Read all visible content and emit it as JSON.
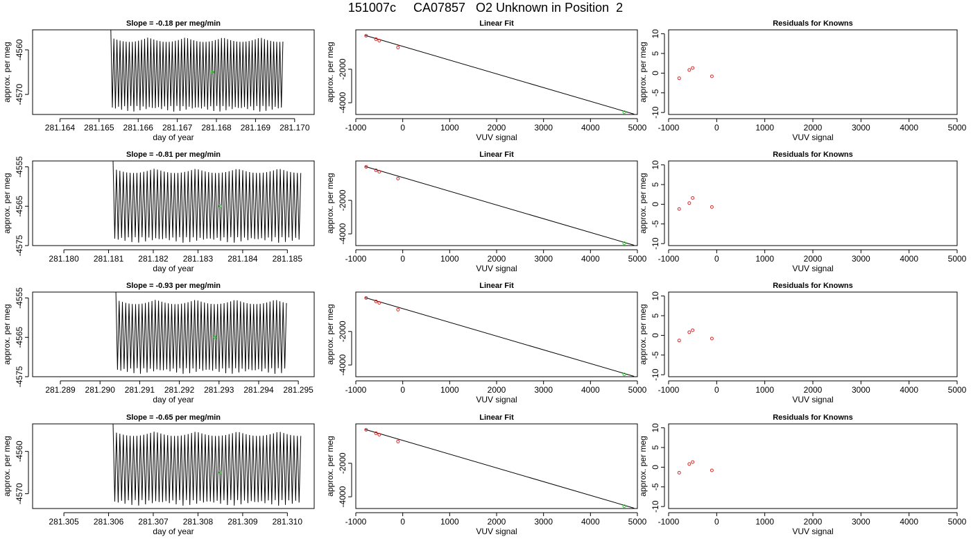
{
  "title": "151007c     CA07857   O2 Unknown in Position  2",
  "chart_data": [
    {
      "type": "line",
      "row": 0,
      "col": 0,
      "title": "Slope =  -0.18  per meg/min",
      "xlabel": "day of year",
      "ylabel": "approx. per meg",
      "xlim": [
        281.1633,
        281.1705
      ],
      "ylim": [
        -4574.5,
        -4555.5
      ],
      "xticks": [
        "281.164",
        "281.165",
        "281.166",
        "281.167",
        "281.168",
        "281.169",
        "281.170"
      ],
      "yticks": [
        "-4560",
        "-4570"
      ],
      "trace": {
        "x_start": 281.1653,
        "x_end": 281.1697,
        "upper": -4555.5,
        "lower": -4574.5,
        "cycles": 56
      },
      "mean_point": {
        "x": 281.1679,
        "y": -4565
      }
    },
    {
      "type": "scatter",
      "row": 0,
      "col": 1,
      "title": "Linear Fit",
      "xlabel": "VUV signal",
      "ylabel": "approx. per meg",
      "xlim": [
        -1000,
        5000
      ],
      "ylim": [
        -4700,
        350
      ],
      "xticks": [
        "-1000",
        "0",
        "1000",
        "2000",
        "3000",
        "4000",
        "5000"
      ],
      "yticks": [
        "-2000",
        "-4000"
      ],
      "knowns": [
        {
          "x": -780,
          "y": 0
        },
        {
          "x": -570,
          "y": -210
        },
        {
          "x": -500,
          "y": -290
        },
        {
          "x": -100,
          "y": -700
        }
      ],
      "unknown": {
        "x": 4720,
        "y": -4560
      },
      "fit_line": {
        "x0": -800,
        "y0": 20,
        "x1": 4930,
        "y1": -4680
      }
    },
    {
      "type": "scatter",
      "row": 0,
      "col": 2,
      "title": "Residuals for Knowns",
      "xlabel": "VUV signal",
      "ylabel": "approx. per meg",
      "xlim": [
        -1000,
        5000
      ],
      "ylim": [
        -10.5,
        11
      ],
      "xticks": [
        "-1000",
        "0",
        "1000",
        "2000",
        "3000",
        "4000",
        "5000"
      ],
      "yticks": [
        "-10",
        "-5",
        "0",
        "5",
        "10"
      ],
      "points": [
        {
          "x": -780,
          "y": -1.3
        },
        {
          "x": -570,
          "y": 0.8
        },
        {
          "x": -500,
          "y": 1.3
        },
        {
          "x": -100,
          "y": -0.8
        }
      ]
    },
    {
      "type": "line",
      "row": 1,
      "col": 0,
      "title": "Slope =  -0.81  per meg/min",
      "xlabel": "day of year",
      "ylabel": "approx. per meg",
      "xlim": [
        281.1793,
        281.1856
      ],
      "ylim": [
        -4575,
        -4553.5
      ],
      "xticks": [
        "281.180",
        "281.181",
        "281.182",
        "281.183",
        "281.184",
        "281.185"
      ],
      "yticks": [
        "-4555",
        "-4565",
        "-4575"
      ],
      "trace": {
        "x_start": 281.1811,
        "x_end": 281.1853,
        "upper": -4553.5,
        "lower": -4575,
        "cycles": 55
      },
      "mean_point": {
        "x": 281.1835,
        "y": -4565
      }
    },
    {
      "type": "scatter",
      "row": 1,
      "col": 1,
      "title": "Linear Fit",
      "xlabel": "VUV signal",
      "ylabel": "approx. per meg",
      "xlim": [
        -1000,
        5000
      ],
      "ylim": [
        -4700,
        350
      ],
      "xticks": [
        "-1000",
        "0",
        "1000",
        "2000",
        "3000",
        "4000",
        "5000"
      ],
      "yticks": [
        "-2000",
        "-4000"
      ],
      "knowns": [
        {
          "x": -780,
          "y": 0
        },
        {
          "x": -570,
          "y": -210
        },
        {
          "x": -500,
          "y": -290
        },
        {
          "x": -100,
          "y": -700
        }
      ],
      "unknown": {
        "x": 4720,
        "y": -4560
      },
      "fit_line": {
        "x0": -800,
        "y0": 20,
        "x1": 4930,
        "y1": -4680
      }
    },
    {
      "type": "scatter",
      "row": 1,
      "col": 2,
      "title": "Residuals for Knowns",
      "xlabel": "VUV signal",
      "ylabel": "approx. per meg",
      "xlim": [
        -1000,
        5000
      ],
      "ylim": [
        -10.5,
        11
      ],
      "xticks": [
        "-1000",
        "0",
        "1000",
        "2000",
        "3000",
        "4000",
        "5000"
      ],
      "yticks": [
        "-10",
        "-5",
        "0",
        "5",
        "10"
      ],
      "points": [
        {
          "x": -780,
          "y": -1.2
        },
        {
          "x": -570,
          "y": 0.3
        },
        {
          "x": -500,
          "y": 1.6
        },
        {
          "x": -100,
          "y": -0.7
        }
      ]
    },
    {
      "type": "line",
      "row": 2,
      "col": 0,
      "title": "Slope =  -0.93  per meg/min",
      "xlabel": "day of year",
      "ylabel": "approx. per meg",
      "xlim": [
        281.2883,
        281.2954
      ],
      "ylim": [
        -4575,
        -4553.5
      ],
      "xticks": [
        "281.289",
        "281.290",
        "281.291",
        "281.292",
        "281.293",
        "281.294",
        "281.295"
      ],
      "yticks": [
        "-4555",
        "-4565",
        "-4575"
      ],
      "trace": {
        "x_start": 281.2904,
        "x_end": 281.2947,
        "upper": -4553.5,
        "lower": -4575,
        "cycles": 52
      },
      "mean_point": {
        "x": 281.2929,
        "y": -4565
      }
    },
    {
      "type": "scatter",
      "row": 2,
      "col": 1,
      "title": "Linear Fit",
      "xlabel": "VUV signal",
      "ylabel": "approx. per meg",
      "xlim": [
        -1000,
        5000
      ],
      "ylim": [
        -4700,
        350
      ],
      "xticks": [
        "-1000",
        "0",
        "1000",
        "2000",
        "3000",
        "4000",
        "5000"
      ],
      "yticks": [
        "-2000",
        "-4000"
      ],
      "knowns": [
        {
          "x": -780,
          "y": 0
        },
        {
          "x": -570,
          "y": -210
        },
        {
          "x": -500,
          "y": -290
        },
        {
          "x": -100,
          "y": -700
        }
      ],
      "unknown": {
        "x": 4720,
        "y": -4560
      },
      "fit_line": {
        "x0": -800,
        "y0": 20,
        "x1": 4930,
        "y1": -4680
      }
    },
    {
      "type": "scatter",
      "row": 2,
      "col": 2,
      "title": "Residuals for Knowns",
      "xlabel": "VUV signal",
      "ylabel": "approx. per meg",
      "xlim": [
        -1000,
        5000
      ],
      "ylim": [
        -10.5,
        11
      ],
      "xticks": [
        "-1000",
        "0",
        "1000",
        "2000",
        "3000",
        "4000",
        "5000"
      ],
      "yticks": [
        "-10",
        "-5",
        "0",
        "5",
        "10"
      ],
      "points": [
        {
          "x": -780,
          "y": -1.3
        },
        {
          "x": -570,
          "y": 0.8
        },
        {
          "x": -500,
          "y": 1.3
        },
        {
          "x": -100,
          "y": -0.8
        }
      ]
    },
    {
      "type": "line",
      "row": 3,
      "col": 0,
      "title": "Slope =  -0.65  per meg/min",
      "xlabel": "day of year",
      "ylabel": "approx. per meg",
      "xlim": [
        281.3043,
        281.3106
      ],
      "ylim": [
        -4573.5,
        -4553.5
      ],
      "xticks": [
        "281.305",
        "281.306",
        "281.307",
        "281.308",
        "281.309",
        "281.310"
      ],
      "yticks": [
        "-4560",
        "-4570"
      ],
      "trace": {
        "x_start": 281.3061,
        "x_end": 281.3103,
        "upper": -4553.5,
        "lower": -4573.5,
        "cycles": 55
      },
      "mean_point": {
        "x": 281.3085,
        "y": -4565
      }
    },
    {
      "type": "scatter",
      "row": 3,
      "col": 1,
      "title": "Linear Fit",
      "xlabel": "VUV signal",
      "ylabel": "approx. per meg",
      "xlim": [
        -1000,
        5000
      ],
      "ylim": [
        -4700,
        350
      ],
      "xticks": [
        "-1000",
        "0",
        "1000",
        "2000",
        "3000",
        "4000",
        "5000"
      ],
      "yticks": [
        "-2000",
        "-4000"
      ],
      "knowns": [
        {
          "x": -780,
          "y": 0
        },
        {
          "x": -570,
          "y": -210
        },
        {
          "x": -500,
          "y": -290
        },
        {
          "x": -100,
          "y": -700
        }
      ],
      "unknown": {
        "x": 4720,
        "y": -4560
      },
      "fit_line": {
        "x0": -800,
        "y0": 20,
        "x1": 4930,
        "y1": -4680
      }
    },
    {
      "type": "scatter",
      "row": 3,
      "col": 2,
      "title": "Residuals for Knowns",
      "xlabel": "VUV signal",
      "ylabel": "approx. per meg",
      "xlim": [
        -1000,
        5000
      ],
      "ylim": [
        -10.5,
        11
      ],
      "xticks": [
        "-1000",
        "0",
        "1000",
        "2000",
        "3000",
        "4000",
        "5000"
      ],
      "yticks": [
        "-10",
        "-5",
        "0",
        "5",
        "10"
      ],
      "points": [
        {
          "x": -780,
          "y": -1.4
        },
        {
          "x": -570,
          "y": 0.8
        },
        {
          "x": -500,
          "y": 1.3
        },
        {
          "x": -100,
          "y": -0.8
        }
      ]
    }
  ],
  "colors": {
    "trace": "#000000",
    "known_point": "#d62728",
    "unknown_point": "#22cc22",
    "frame": "#000000"
  }
}
